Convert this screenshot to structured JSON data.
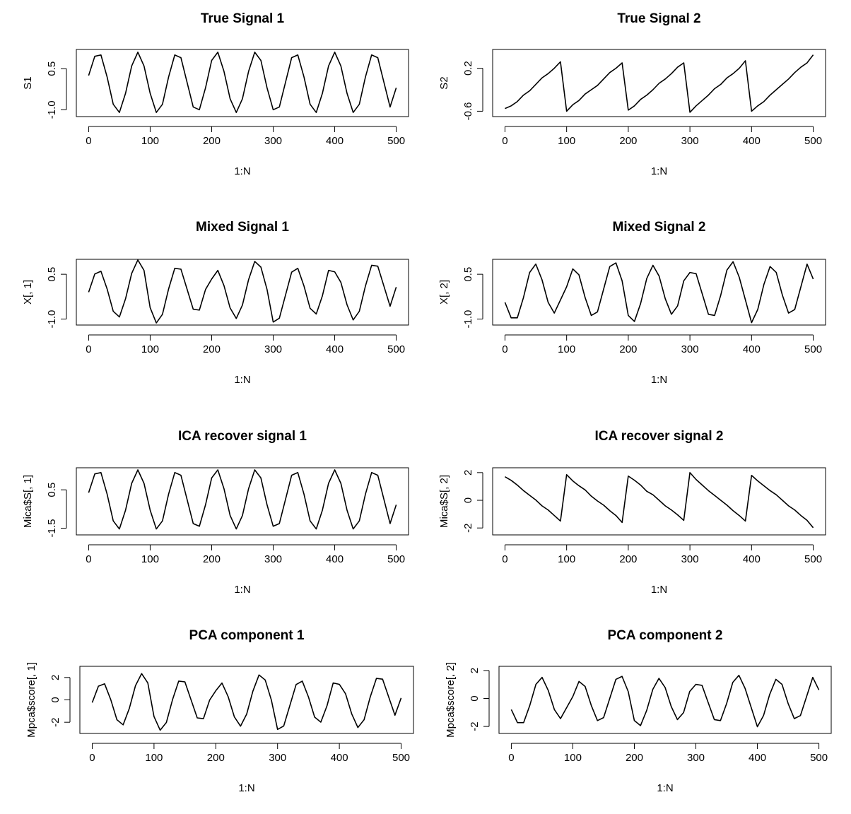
{
  "chart_data": [
    {
      "type": "line",
      "title": "True Signal 1",
      "xlabel": "1:N",
      "ylabel": "S1",
      "color": "#000000",
      "x": [
        0,
        10,
        20,
        30,
        40,
        50,
        60,
        70,
        80,
        90,
        100,
        110,
        120,
        130,
        140,
        150,
        160,
        170,
        180,
        190,
        200,
        210,
        220,
        230,
        240,
        250,
        260,
        270,
        280,
        290,
        300,
        310,
        320,
        330,
        340,
        350,
        360,
        370,
        380,
        390,
        400,
        410,
        420,
        430,
        440,
        450,
        460,
        470,
        480,
        490,
        500
      ],
      "values": [
        0.25,
        0.95,
        1.0,
        0.2,
        -0.8,
        -1.1,
        -0.4,
        0.6,
        1.1,
        0.6,
        -0.4,
        -1.1,
        -0.8,
        0.2,
        1.0,
        0.9,
        0.0,
        -0.9,
        -1.0,
        -0.2,
        0.8,
        1.1,
        0.4,
        -0.6,
        -1.1,
        -0.6,
        0.4,
        1.1,
        0.8,
        -0.2,
        -1.0,
        -0.9,
        0.0,
        0.9,
        1.0,
        0.2,
        -0.8,
        -1.1,
        -0.4,
        0.6,
        1.1,
        0.6,
        -0.4,
        -1.1,
        -0.8,
        0.2,
        1.0,
        0.9,
        0.0,
        -0.9,
        -0.2
      ],
      "xlim": [
        -20,
        520
      ],
      "xticks": [
        0,
        100,
        200,
        300,
        400,
        500
      ],
      "ylim": [
        -1.25,
        1.2
      ],
      "yticks": [
        {
          "value": -1.0,
          "label": "-1.0"
        },
        0.5
      ]
    },
    {
      "type": "line",
      "title": "True Signal 2",
      "xlabel": "1:N",
      "ylabel": "S2",
      "color": "#000000",
      "x": [
        0,
        10,
        20,
        30,
        40,
        50,
        60,
        70,
        80,
        90,
        100,
        110,
        120,
        130,
        140,
        150,
        160,
        170,
        180,
        190,
        200,
        210,
        220,
        230,
        240,
        250,
        260,
        270,
        280,
        290,
        300,
        310,
        320,
        330,
        340,
        350,
        360,
        370,
        380,
        390,
        400,
        410,
        420,
        430,
        440,
        450,
        460,
        470,
        480,
        490,
        500
      ],
      "values": [
        -0.55,
        -0.5,
        -0.42,
        -0.3,
        -0.22,
        -0.1,
        0.02,
        0.1,
        0.2,
        0.32,
        -0.6,
        -0.48,
        -0.4,
        -0.28,
        -0.2,
        -0.12,
        0.0,
        0.12,
        0.2,
        0.3,
        -0.58,
        -0.5,
        -0.38,
        -0.3,
        -0.2,
        -0.08,
        0.0,
        0.1,
        0.22,
        0.3,
        -0.62,
        -0.5,
        -0.4,
        -0.3,
        -0.18,
        -0.1,
        0.02,
        0.1,
        0.2,
        0.34,
        -0.6,
        -0.5,
        -0.42,
        -0.3,
        -0.2,
        -0.1,
        0.0,
        0.12,
        0.22,
        0.3,
        0.45
      ],
      "xlim": [
        -20,
        520
      ],
      "xticks": [
        0,
        100,
        200,
        300,
        400,
        500
      ],
      "ylim": [
        -0.7,
        0.55
      ],
      "yticks": [
        -0.6,
        0.2
      ]
    },
    {
      "type": "line",
      "title": "Mixed Signal 1",
      "xlabel": "1:N",
      "ylabel": "X[, 1]",
      "color": "#000000",
      "x": [
        0,
        10,
        20,
        30,
        40,
        50,
        60,
        70,
        80,
        90,
        100,
        110,
        120,
        130,
        140,
        150,
        160,
        170,
        180,
        190,
        200,
        210,
        220,
        230,
        240,
        250,
        260,
        270,
        280,
        290,
        300,
        310,
        320,
        330,
        340,
        350,
        360,
        370,
        380,
        390,
        400,
        410,
        420,
        430,
        440,
        450,
        460,
        470,
        480,
        490,
        500
      ],
      "values": [
        -0.1,
        0.51,
        0.6,
        0.01,
        -0.74,
        -0.93,
        -0.32,
        0.53,
        0.98,
        0.63,
        -0.62,
        -1.13,
        -0.84,
        0.01,
        0.7,
        0.67,
        0.0,
        -0.67,
        -0.7,
        -0.01,
        0.34,
        0.63,
        0.12,
        -0.63,
        -0.98,
        -0.53,
        0.32,
        0.93,
        0.74,
        -0.01,
        -1.1,
        -0.97,
        -0.2,
        0.57,
        0.7,
        0.11,
        -0.64,
        -0.83,
        -0.22,
        0.63,
        0.58,
        0.23,
        -0.52,
        -1.03,
        -0.74,
        0.11,
        0.8,
        0.77,
        0.1,
        -0.57,
        0.07
      ],
      "xlim": [
        -20,
        520
      ],
      "xticks": [
        0,
        100,
        200,
        300,
        400,
        500
      ],
      "ylim": [
        -1.2,
        1.0
      ],
      "yticks": [
        {
          "value": -1.0,
          "label": "-1.0"
        },
        0.5
      ]
    },
    {
      "type": "line",
      "title": "Mixed Signal 2",
      "xlabel": "1:N",
      "ylabel": "X[, 2]",
      "color": "#000000",
      "x": [
        0,
        10,
        20,
        30,
        40,
        50,
        60,
        70,
        80,
        90,
        100,
        110,
        120,
        130,
        140,
        150,
        160,
        170,
        180,
        190,
        200,
        210,
        220,
        230,
        240,
        250,
        260,
        270,
        280,
        290,
        300,
        310,
        320,
        330,
        340,
        350,
        360,
        370,
        380,
        390,
        400,
        410,
        420,
        430,
        440,
        450,
        460,
        470,
        480,
        490,
        500
      ],
      "values": [
        -0.44,
        -0.96,
        -0.96,
        -0.28,
        0.56,
        0.84,
        0.32,
        -0.44,
        -0.8,
        -0.36,
        0.08,
        0.68,
        0.48,
        -0.28,
        -0.88,
        -0.76,
        0.0,
        0.76,
        0.88,
        0.28,
        -0.88,
        -1.08,
        -0.48,
        0.36,
        0.8,
        0.44,
        -0.32,
        -0.84,
        -0.56,
        0.28,
        0.56,
        0.52,
        -0.16,
        -0.84,
        -0.88,
        -0.2,
        0.64,
        0.92,
        0.4,
        -0.36,
        -1.12,
        -0.68,
        0.16,
        0.76,
        0.56,
        -0.2,
        -0.8,
        -0.68,
        0.08,
        0.84,
        0.34
      ],
      "xlim": [
        -20,
        520
      ],
      "xticks": [
        0,
        100,
        200,
        300,
        400,
        500
      ],
      "ylim": [
        -1.2,
        1.0
      ],
      "yticks": [
        {
          "value": -1.0,
          "label": "-1.0"
        },
        0.5
      ]
    },
    {
      "type": "line",
      "title": "ICA recover signal 1",
      "xlabel": "1:N",
      "ylabel": "Mica$S[, 1]",
      "color": "#000000",
      "x": [
        0,
        10,
        20,
        30,
        40,
        50,
        60,
        70,
        80,
        90,
        100,
        110,
        120,
        130,
        140,
        150,
        160,
        170,
        180,
        190,
        200,
        210,
        220,
        230,
        240,
        250,
        260,
        270,
        280,
        290,
        300,
        310,
        320,
        330,
        340,
        350,
        360,
        370,
        380,
        390,
        400,
        410,
        420,
        430,
        440,
        450,
        460,
        470,
        480,
        490,
        500
      ],
      "values": [
        0.35,
        1.33,
        1.4,
        0.28,
        -1.12,
        -1.54,
        -0.56,
        0.84,
        1.54,
        0.84,
        -0.56,
        -1.54,
        -1.12,
        0.28,
        1.4,
        1.26,
        0.0,
        -1.26,
        -1.4,
        -0.28,
        1.12,
        1.54,
        0.56,
        -0.84,
        -1.54,
        -0.84,
        0.56,
        1.54,
        1.12,
        -0.28,
        -1.4,
        -1.26,
        0.0,
        1.26,
        1.4,
        0.28,
        -1.12,
        -1.54,
        -0.56,
        0.84,
        1.54,
        0.84,
        -0.56,
        -1.54,
        -1.12,
        0.28,
        1.4,
        1.26,
        0.0,
        -1.26,
        -0.28
      ],
      "xlim": [
        -20,
        520
      ],
      "xticks": [
        0,
        100,
        200,
        300,
        400,
        500
      ],
      "ylim": [
        -1.85,
        1.65
      ],
      "yticks": [
        -1.5,
        0.5
      ]
    },
    {
      "type": "line",
      "title": "ICA recover signal 2",
      "xlabel": "1:N",
      "ylabel": "Mica$S[, 2]",
      "color": "#000000",
      "x": [
        0,
        10,
        20,
        30,
        40,
        50,
        60,
        70,
        80,
        90,
        100,
        110,
        120,
        130,
        140,
        150,
        160,
        170,
        180,
        190,
        200,
        210,
        220,
        230,
        240,
        250,
        260,
        270,
        280,
        290,
        300,
        310,
        320,
        330,
        340,
        350,
        360,
        370,
        380,
        390,
        400,
        410,
        420,
        430,
        440,
        450,
        460,
        470,
        480,
        490,
        500
      ],
      "values": [
        1.7,
        1.44,
        1.1,
        0.7,
        0.36,
        0.02,
        -0.4,
        -0.7,
        -1.1,
        -1.5,
        1.85,
        1.4,
        1.05,
        0.75,
        0.3,
        -0.05,
        -0.35,
        -0.75,
        -1.1,
        -1.6,
        1.75,
        1.45,
        1.1,
        0.65,
        0.4,
        0.0,
        -0.4,
        -0.7,
        -1.05,
        -1.45,
        2.0,
        1.5,
        1.1,
        0.7,
        0.35,
        0.0,
        -0.35,
        -0.75,
        -1.1,
        -1.5,
        1.8,
        1.4,
        1.05,
        0.7,
        0.4,
        0.0,
        -0.4,
        -0.7,
        -1.1,
        -1.45,
        -1.98
      ],
      "xlim": [
        -20,
        520
      ],
      "xticks": [
        0,
        100,
        200,
        300,
        400,
        500
      ],
      "ylim": [
        -2.5,
        2.35
      ],
      "yticks": [
        -2,
        0,
        2
      ]
    },
    {
      "type": "line",
      "title": "PCA component 1",
      "xlabel": "1:N",
      "ylabel": "Mpca$score[, 1]",
      "color": "#000000",
      "x": [
        0,
        10,
        20,
        30,
        40,
        50,
        60,
        70,
        80,
        90,
        100,
        110,
        120,
        130,
        140,
        150,
        160,
        170,
        180,
        190,
        200,
        210,
        220,
        230,
        240,
        250,
        260,
        270,
        280,
        290,
        300,
        310,
        320,
        330,
        340,
        350,
        360,
        370,
        380,
        390,
        400,
        410,
        420,
        430,
        440,
        450,
        460,
        470,
        480,
        490,
        500
      ],
      "values": [
        -0.24,
        1.22,
        1.44,
        0.02,
        -1.78,
        -2.23,
        -0.77,
        1.27,
        2.35,
        1.51,
        -1.49,
        -2.71,
        -2.02,
        0.02,
        1.68,
        1.61,
        0.0,
        -1.61,
        -1.68,
        -0.02,
        0.82,
        1.51,
        0.29,
        -1.51,
        -2.35,
        -1.27,
        0.77,
        2.23,
        1.78,
        -0.02,
        -2.64,
        -2.33,
        -0.48,
        1.37,
        1.68,
        0.26,
        -1.54,
        -1.99,
        -0.53,
        1.51,
        1.39,
        0.55,
        -1.25,
        -2.47,
        -1.78,
        0.26,
        1.92,
        1.85,
        0.24,
        -1.37,
        0.17
      ],
      "xlim": [
        -20,
        520
      ],
      "xticks": [
        0,
        100,
        200,
        300,
        400,
        500
      ],
      "ylim": [
        -3.0,
        3.0
      ],
      "yticks": [
        -2,
        0,
        2
      ]
    },
    {
      "type": "line",
      "title": "PCA component 2",
      "xlabel": "1:N",
      "ylabel": "Mpca$score[, 2]",
      "color": "#000000",
      "x": [
        0,
        10,
        20,
        30,
        40,
        50,
        60,
        70,
        80,
        90,
        100,
        110,
        120,
        130,
        140,
        150,
        160,
        170,
        180,
        190,
        200,
        210,
        220,
        230,
        240,
        250,
        260,
        270,
        280,
        290,
        300,
        310,
        320,
        330,
        340,
        350,
        360,
        370,
        380,
        390,
        400,
        410,
        420,
        430,
        440,
        450,
        460,
        470,
        480,
        490,
        500
      ],
      "values": [
        -0.79,
        -1.73,
        -1.73,
        -0.5,
        1.01,
        1.51,
        0.58,
        -0.79,
        -1.44,
        -0.65,
        0.14,
        1.22,
        0.86,
        -0.5,
        -1.58,
        -1.37,
        0.0,
        1.37,
        1.58,
        0.5,
        -1.58,
        -1.94,
        -0.86,
        0.65,
        1.44,
        0.79,
        -0.58,
        -1.51,
        -1.01,
        0.5,
        1.01,
        0.94,
        -0.29,
        -1.51,
        -1.58,
        -0.36,
        1.15,
        1.66,
        0.72,
        -0.65,
        -2.02,
        -1.22,
        0.29,
        1.37,
        1.01,
        -0.36,
        -1.44,
        -1.22,
        0.14,
        1.51,
        0.61
      ],
      "xlim": [
        -20,
        520
      ],
      "xticks": [
        0,
        100,
        200,
        300,
        400,
        500
      ],
      "ylim": [
        -2.5,
        2.3
      ],
      "yticks": [
        -2,
        0,
        2
      ]
    }
  ]
}
